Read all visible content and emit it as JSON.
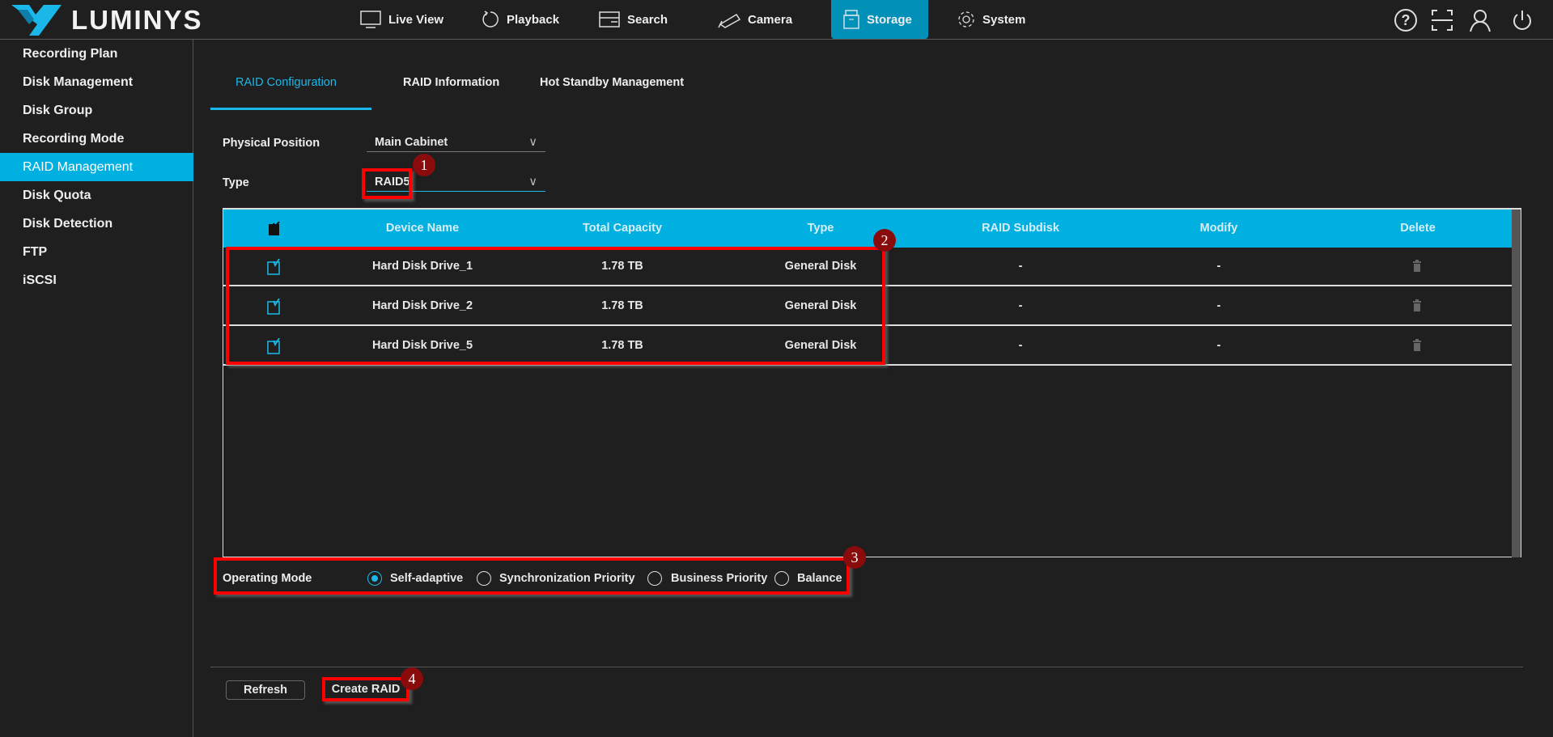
{
  "app": {
    "brand": "LUMINYS",
    "accent": "#00b0e0"
  },
  "nav": [
    {
      "label": "Live View",
      "icon": "monitor-icon"
    },
    {
      "label": "Playback",
      "icon": "playback-icon"
    },
    {
      "label": "Search",
      "icon": "search-icon"
    },
    {
      "label": "Camera",
      "icon": "camera-icon"
    },
    {
      "label": "Storage",
      "icon": "storage-icon",
      "active": true
    },
    {
      "label": "System",
      "icon": "gear-icon"
    }
  ],
  "header_icons": [
    "help-icon",
    "fullscreen-icon",
    "user-icon",
    "power-icon"
  ],
  "sidebar": {
    "items": [
      {
        "label": "Recording Plan"
      },
      {
        "label": "Disk Management"
      },
      {
        "label": "Disk Group"
      },
      {
        "label": "Recording Mode"
      },
      {
        "label": "RAID Management",
        "active": true
      },
      {
        "label": "Disk Quota"
      },
      {
        "label": "Disk Detection"
      },
      {
        "label": "FTP"
      },
      {
        "label": "iSCSI"
      }
    ]
  },
  "tabs": [
    {
      "label": "RAID Configuration",
      "active": true
    },
    {
      "label": "RAID Information"
    },
    {
      "label": "Hot Standby Management"
    }
  ],
  "form": {
    "physical_position": {
      "label": "Physical Position",
      "value": "Main Cabinet"
    },
    "type": {
      "label": "Type",
      "value": "RAID5"
    }
  },
  "table": {
    "headers": [
      "Device Name",
      "Total Capacity",
      "Type",
      "RAID Subdisk",
      "Modify",
      "Delete"
    ],
    "rows": [
      {
        "name": "Hard Disk Drive_1",
        "capacity": "1.78 TB",
        "type": "General Disk",
        "subdisk": "-",
        "modify": "-",
        "checked": true
      },
      {
        "name": "Hard Disk Drive_2",
        "capacity": "1.78 TB",
        "type": "General Disk",
        "subdisk": "-",
        "modify": "-",
        "checked": true
      },
      {
        "name": "Hard Disk Drive_5",
        "capacity": "1.78 TB",
        "type": "General Disk",
        "subdisk": "-",
        "modify": "-",
        "checked": true
      }
    ]
  },
  "operating_mode": {
    "label": "Operating Mode",
    "options": [
      "Self-adaptive",
      "Synchronization Priority",
      "Business Priority",
      "Balance"
    ],
    "selected": "Self-adaptive"
  },
  "buttons": {
    "refresh": "Refresh",
    "create": "Create RAID"
  },
  "annotations": [
    "1",
    "2",
    "3",
    "4"
  ]
}
